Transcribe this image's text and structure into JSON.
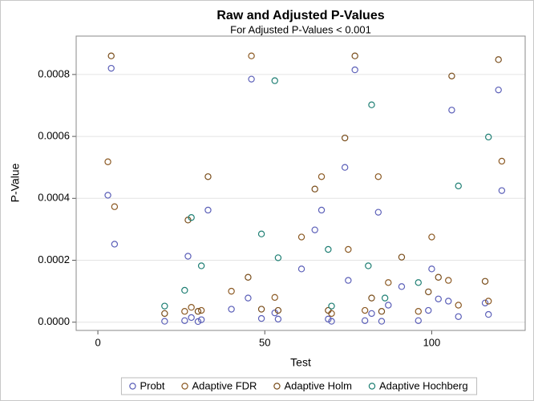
{
  "chart_data": {
    "type": "scatter",
    "title": "Raw and Adjusted P-Values",
    "subtitle": "For Adjusted P-Values < 0.001",
    "x_label": "Test",
    "y_label": "P-Value",
    "xlim": [
      -6.5,
      128
    ],
    "xticks": [
      0,
      50,
      100
    ],
    "ylim": [
      -2.66e-05,
      0.000924
    ],
    "yticks": [
      {
        "value": 0,
        "label": "0.0000"
      },
      {
        "value": 0.0002,
        "label": "0.0002"
      },
      {
        "value": 0.0004,
        "label": "0.0004"
      },
      {
        "value": 0.0006,
        "label": "0.0006"
      },
      {
        "value": 0.0008,
        "label": "0.0008"
      }
    ],
    "grid": true,
    "legend": "bottom",
    "series": [
      {
        "name": "Probt",
        "color": "#5b5fb8",
        "x": [
          3,
          4,
          5,
          20,
          26,
          27,
          28,
          30,
          31,
          33,
          40,
          45,
          46,
          49,
          53,
          54,
          61,
          65,
          67,
          69,
          70,
          74,
          75,
          77,
          80,
          82,
          84,
          85,
          87,
          91,
          96,
          99,
          100,
          102,
          105,
          106,
          108,
          116,
          117,
          120,
          121
        ],
        "values": [
          0.00041,
          0.00082,
          0.000252,
          3e-06,
          5e-06,
          0.000213,
          1.5e-05,
          2e-06,
          8e-06,
          0.000362,
          4.2e-05,
          7.8e-05,
          0.000785,
          1.2e-05,
          3e-05,
          1e-05,
          0.000172,
          0.000298,
          0.000362,
          1e-05,
          3e-06,
          0.0005,
          0.000135,
          0.000815,
          5e-06,
          2.8e-05,
          0.000355,
          3e-06,
          5.5e-05,
          0.000115,
          5e-06,
          3.8e-05,
          0.000172,
          7.5e-05,
          6.8e-05,
          0.000685,
          1.8e-05,
          6.2e-05,
          2.5e-05,
          0.00075,
          0.000425
        ]
      },
      {
        "name": "Adaptive FDR",
        "color": "#8c5a24",
        "x": [
          3,
          5,
          26,
          28,
          31,
          40,
          46,
          53,
          61,
          67,
          70,
          75,
          80,
          84,
          87,
          96,
          100,
          105,
          108,
          117,
          121
        ],
        "values": [
          0.000518,
          0.000373,
          3.5e-05,
          4.8e-05,
          3.8e-05,
          0.0001,
          0.00086,
          8e-05,
          0.000275,
          0.00047,
          2.8e-05,
          0.000235,
          3.8e-05,
          0.00047,
          0.000128,
          3.5e-05,
          0.000275,
          0.000135,
          5.5e-05,
          6.8e-05,
          0.00052
        ]
      },
      {
        "name": "Adaptive Holm",
        "color": "#7a4e1c",
        "x": [
          4,
          20,
          27,
          30,
          33,
          45,
          49,
          54,
          65,
          69,
          74,
          77,
          82,
          85,
          91,
          99,
          102,
          106,
          116,
          120
        ],
        "values": [
          0.00086,
          2.8e-05,
          0.00033,
          3.5e-05,
          0.00047,
          0.000145,
          4.2e-05,
          3.8e-05,
          0.00043,
          3.8e-05,
          0.000595,
          0.00086,
          7.8e-05,
          3.5e-05,
          0.00021,
          9.8e-05,
          0.000145,
          0.000795,
          0.000132,
          0.000848
        ]
      },
      {
        "name": "Adaptive Hochberg",
        "color": "#1f7f74",
        "x": [
          20,
          26,
          28,
          31,
          49,
          53,
          54,
          69,
          70,
          81,
          82,
          86,
          96,
          108,
          117
        ],
        "values": [
          5.2e-05,
          0.000103,
          0.000338,
          0.000182,
          0.000285,
          0.00078,
          0.000208,
          0.000235,
          5.2e-05,
          0.000182,
          0.000702,
          7.8e-05,
          0.000128,
          0.00044,
          0.000598
        ]
      }
    ]
  }
}
